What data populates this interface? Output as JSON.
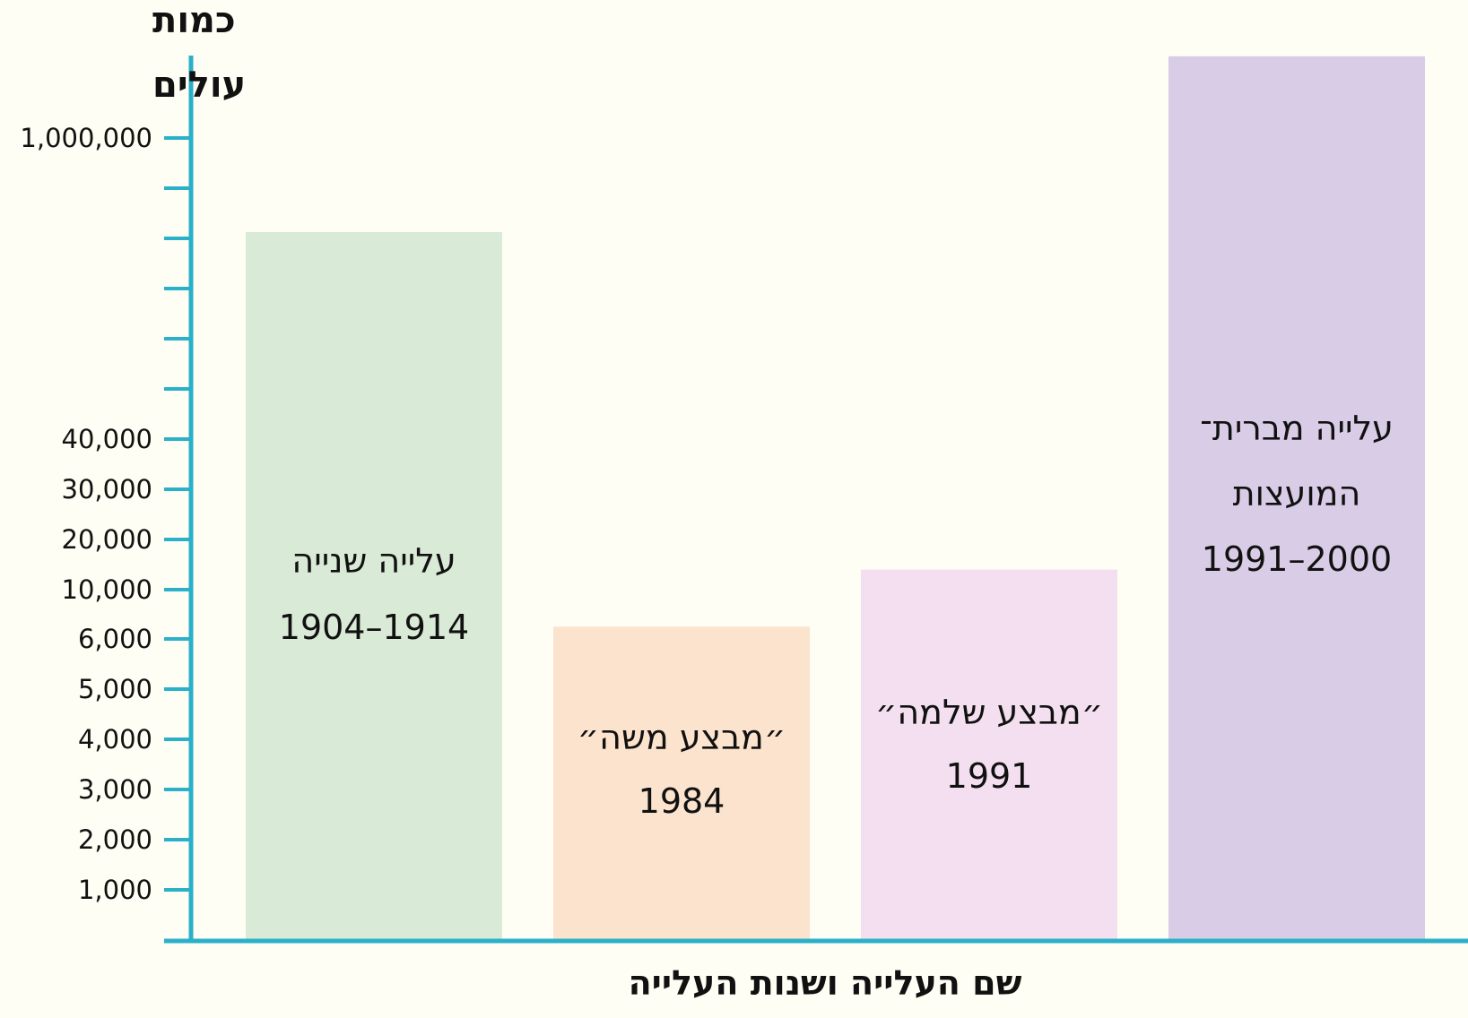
{
  "chart_data": {
    "type": "bar",
    "ylabel": [
      "כמות",
      "עולים"
    ],
    "xlabel": "שם העלייה ושנות העלייה",
    "y_scale": "custom non-linear (labeled ticks unevenly spaced)",
    "y_tick_labels": [
      "1,000",
      "2,000",
      "3,000",
      "4,000",
      "5,000",
      "6,000",
      "10,000",
      "20,000",
      "30,000",
      "40,000",
      "1,000,000"
    ],
    "y_tick_values": [
      1000,
      2000,
      3000,
      4000,
      5000,
      6000,
      10000,
      20000,
      30000,
      40000,
      1000000
    ],
    "unlabeled_minor_ticks": 5,
    "grid": false,
    "categories": [
      {
        "label_lines": [
          "עלייה שנייה",
          "1914–1904"
        ],
        "value": 700000,
        "color": "#d9ead6"
      },
      {
        "label_lines": [
          "״מבצע משה״",
          "1984"
        ],
        "value": 7000,
        "color": "#fbe3cd"
      },
      {
        "label_lines": [
          "״מבצע שלמה״",
          "1991"
        ],
        "value": 14000,
        "color": "#f3dfef"
      },
      {
        "label_lines": [
          "עלייה מברית־",
          "המועצות",
          "2000–1991"
        ],
        "value": 1200000,
        "color": "#d9cce6"
      }
    ]
  },
  "colors": {
    "axis": "#2bb0c9",
    "background": "#fefef4",
    "text": "#111111"
  }
}
